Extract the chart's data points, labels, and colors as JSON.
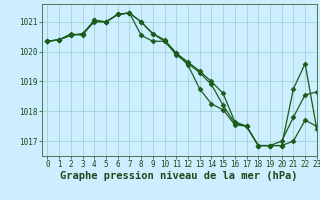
{
  "background_color": "#cceeff",
  "grid_color": "#99cccc",
  "line_color": "#1a5c1a",
  "marker_color": "#1a5c1a",
  "title": "Graphe pression niveau de la mer (hPa)",
  "title_color": "#1a4a1a",
  "xlim": [
    -0.5,
    23
  ],
  "ylim": [
    1016.5,
    1021.6
  ],
  "yticks": [
    1017,
    1018,
    1019,
    1020,
    1021
  ],
  "xticks": [
    0,
    1,
    2,
    3,
    4,
    5,
    6,
    7,
    8,
    9,
    10,
    11,
    12,
    13,
    14,
    15,
    16,
    17,
    18,
    19,
    20,
    21,
    22,
    23
  ],
  "series1_x": [
    0,
    1,
    2,
    3,
    4,
    5,
    6,
    7,
    8,
    9,
    10,
    11,
    12,
    13,
    14,
    15,
    16,
    17,
    18,
    19,
    20,
    21,
    22,
    23
  ],
  "series1_y": [
    1020.35,
    1020.4,
    1020.6,
    1020.55,
    1021.05,
    1021.0,
    1021.25,
    1021.3,
    1021.0,
    1020.6,
    1020.4,
    1019.95,
    1019.65,
    1019.35,
    1019.0,
    1018.6,
    1017.65,
    1017.5,
    1016.85,
    1016.85,
    1017.0,
    1017.8,
    1018.55,
    1018.65
  ],
  "series2_x": [
    0,
    1,
    2,
    3,
    4,
    5,
    6,
    7,
    8,
    9,
    10,
    11,
    12,
    13,
    14,
    15,
    16,
    17,
    18,
    19,
    20,
    21,
    22,
    23
  ],
  "series2_y": [
    1020.35,
    1020.4,
    1020.55,
    1020.6,
    1021.05,
    1021.0,
    1021.25,
    1021.3,
    1020.55,
    1020.35,
    1020.35,
    1019.95,
    1019.55,
    1018.75,
    1018.25,
    1018.05,
    1017.55,
    1017.5,
    1016.85,
    1016.85,
    1016.85,
    1018.75,
    1019.6,
    1017.4
  ],
  "series3_x": [
    0,
    1,
    2,
    3,
    4,
    5,
    6,
    7,
    8,
    9,
    10,
    11,
    12,
    13,
    14,
    15,
    16,
    17,
    18,
    19,
    20,
    21,
    22,
    23
  ],
  "series3_y": [
    1020.35,
    1020.4,
    1020.55,
    1020.6,
    1021.0,
    1021.0,
    1021.25,
    1021.3,
    1021.0,
    1020.6,
    1020.35,
    1019.9,
    1019.6,
    1019.3,
    1018.9,
    1018.2,
    1017.6,
    1017.5,
    1016.85,
    1016.85,
    1016.85,
    1017.0,
    1017.7,
    1017.5
  ],
  "tick_fontsize": 5.5,
  "title_fontsize": 7.5
}
